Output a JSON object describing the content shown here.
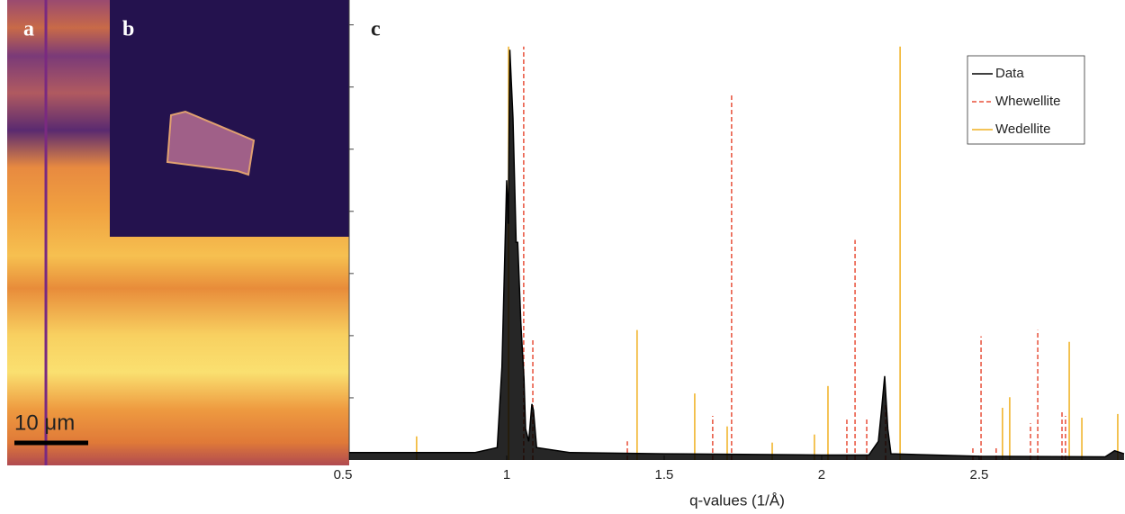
{
  "figure": {
    "panel_labels": [
      "a",
      "b",
      "c"
    ],
    "scale_bar": "10 μm"
  },
  "chart_data": {
    "type": "line",
    "xlabel": "q-values (1/Å)",
    "xlim": [
      0.5,
      2.963
    ],
    "xticks": [
      0.5,
      1,
      1.5,
      2,
      2.5
    ],
    "ylim": [
      0,
      7.4
    ],
    "yticks": [
      1,
      2,
      3,
      4,
      5,
      6,
      7
    ],
    "legend": "upper right",
    "series": [
      {
        "name": "Data",
        "color": "#000000",
        "style": "line",
        "x": [
          0.5,
          0.9,
          0.97,
          0.985,
          0.995,
          1.0,
          1.005,
          1.01,
          1.02,
          1.03,
          1.035,
          1.045,
          1.055,
          1.06,
          1.07,
          1.08,
          1.085,
          1.095,
          1.2,
          1.5,
          2.0,
          2.15,
          2.18,
          2.19,
          2.2,
          2.21,
          2.22,
          2.5,
          2.9,
          2.93,
          2.96
        ],
        "values": [
          0.12,
          0.12,
          0.2,
          1.5,
          3.5,
          4.5,
          3.8,
          6.6,
          5.5,
          3.5,
          3.5,
          2.2,
          1.3,
          0.5,
          0.3,
          0.9,
          0.8,
          0.2,
          0.12,
          0.1,
          0.08,
          0.08,
          0.3,
          0.8,
          1.35,
          0.5,
          0.1,
          0.06,
          0.05,
          0.15,
          0.1
        ]
      },
      {
        "name": "Whewellite",
        "color": "#e8503a",
        "style": "stick",
        "dash": true,
        "x": [
          1.054,
          1.083,
          1.383,
          1.654,
          1.714,
          2.08,
          2.106,
          2.143,
          2.203,
          2.48,
          2.506,
          2.554,
          2.663,
          2.686,
          2.763,
          2.774
        ],
        "values": [
          6.65,
          1.97,
          0.3,
          0.71,
          5.9,
          0.65,
          3.54,
          0.67,
          0.9,
          0.22,
          1.99,
          0.22,
          0.59,
          2.09,
          0.78,
          0.71
        ]
      },
      {
        "name": "Wedellite",
        "color": "#f0b020",
        "style": "stick",
        "dash": false,
        "x": [
          0.714,
          1.006,
          1.414,
          1.597,
          1.7,
          1.843,
          1.977,
          2.02,
          2.249,
          2.574,
          2.597,
          2.786,
          2.826,
          2.94
        ],
        "values": [
          0.38,
          6.65,
          2.09,
          1.07,
          0.54,
          0.28,
          0.41,
          1.19,
          6.65,
          0.84,
          1.01,
          1.9,
          0.68,
          0.74
        ]
      }
    ]
  }
}
